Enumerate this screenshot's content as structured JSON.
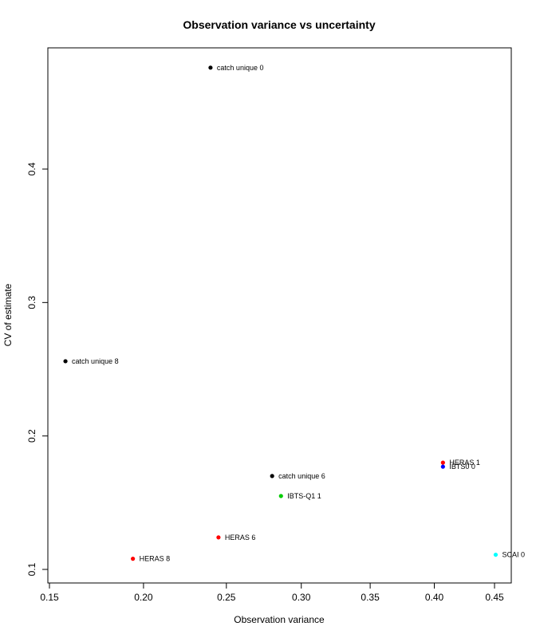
{
  "chart_data": {
    "type": "scatter",
    "title": "Observation variance vs uncertainty",
    "xlabel": "Observation variance",
    "ylabel": "CV of estimate",
    "xlim": [
      0.15,
      0.46
    ],
    "ylim": [
      0.1,
      0.48
    ],
    "x_scale": "sqrt",
    "x_ticks": [
      "0.15",
      "0.20",
      "0.25",
      "0.30",
      "0.35",
      "0.40",
      "0.45"
    ],
    "x_tick_values": [
      0.15,
      0.2,
      0.25,
      0.3,
      0.35,
      0.4,
      0.45
    ],
    "y_ticks": [
      "0.1",
      "0.2",
      "0.3",
      "0.4"
    ],
    "y_tick_values": [
      0.1,
      0.2,
      0.3,
      0.4
    ],
    "grid": false,
    "legend": "none",
    "points": [
      {
        "x": 0.24,
        "y": 0.476,
        "color": "#000000",
        "label": "catch unique 0"
      },
      {
        "x": 0.158,
        "y": 0.256,
        "color": "#000000",
        "label": "catch unique 8"
      },
      {
        "x": 0.28,
        "y": 0.17,
        "color": "#000000",
        "label": "catch unique 6"
      },
      {
        "x": 0.286,
        "y": 0.155,
        "color": "#00cc00",
        "label": "IBTS-Q1 1"
      },
      {
        "x": 0.407,
        "y": 0.18,
        "color": "#ff0000",
        "label": "HERAS 1"
      },
      {
        "x": 0.407,
        "y": 0.177,
        "color": "#0000ff",
        "label": "IBTS0 0"
      },
      {
        "x": 0.451,
        "y": 0.111,
        "color": "#00ffff",
        "label": "SCAI 0"
      },
      {
        "x": 0.245,
        "y": 0.124,
        "color": "#ff0000",
        "label": "HERAS 6"
      },
      {
        "x": 0.194,
        "y": 0.108,
        "color": "#ff0000",
        "label": "HERAS 8"
      }
    ]
  }
}
